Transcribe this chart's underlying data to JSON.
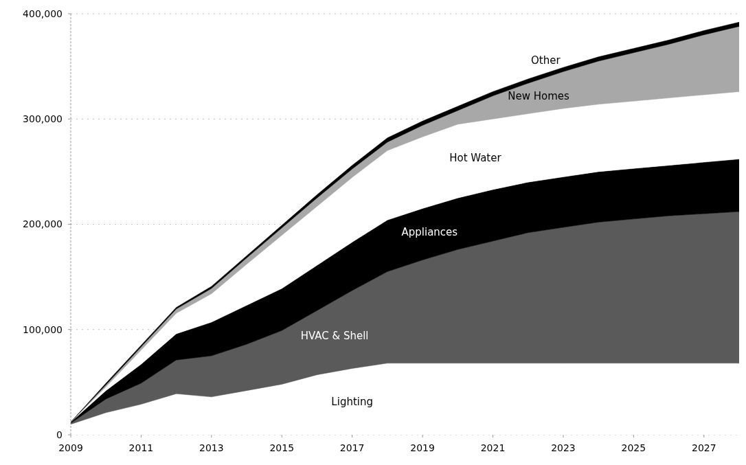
{
  "chart_data": {
    "type": "area",
    "stacked": true,
    "x": [
      2009,
      2010,
      2011,
      2012,
      2013,
      2014,
      2015,
      2016,
      2017,
      2018,
      2019,
      2020,
      2021,
      2022,
      2023,
      2024,
      2025,
      2026,
      2027,
      2028
    ],
    "xlim": [
      2009,
      2028
    ],
    "xticks": [
      2009,
      2011,
      2013,
      2015,
      2017,
      2019,
      2021,
      2023,
      2025,
      2027
    ],
    "ylim": [
      0,
      400000
    ],
    "yticks": [
      {
        "value": 0,
        "label": "0"
      },
      {
        "value": 100000,
        "label": "100,000"
      },
      {
        "value": 200000,
        "label": "200,000"
      },
      {
        "value": 300000,
        "label": "300,000"
      },
      {
        "value": 400000,
        "label": "400,000"
      }
    ],
    "grid": "y",
    "series": [
      {
        "name": "Lighting",
        "color": "#ffffff",
        "values": [
          10000,
          21000,
          29000,
          39000,
          36000,
          42000,
          48000,
          57000,
          63000,
          68000,
          68000,
          68000,
          68000,
          68000,
          68000,
          68000,
          68000,
          68000,
          68000,
          68000
        ]
      },
      {
        "name": "HVAC & Shell",
        "color": "#5a5a5a",
        "values": [
          1000,
          13000,
          20000,
          32000,
          39000,
          44000,
          51000,
          61000,
          74000,
          87000,
          98000,
          108000,
          116000,
          124000,
          129000,
          134000,
          137000,
          140000,
          142000,
          144000
        ]
      },
      {
        "name": "Appliances",
        "color": "#000000",
        "values": [
          1000,
          8000,
          18000,
          25000,
          32000,
          37000,
          40000,
          43000,
          46000,
          49000,
          49000,
          49000,
          49000,
          48000,
          48000,
          48000,
          48000,
          48000,
          49000,
          50000
        ]
      },
      {
        "name": "Hot Water",
        "color": "#ffffff",
        "values": [
          0,
          3500,
          13500,
          19500,
          27000,
          39000,
          50500,
          56000,
          61500,
          66000,
          68000,
          70000,
          67000,
          65000,
          65000,
          64000,
          64000,
          64000,
          64000,
          64000
        ]
      },
      {
        "name": "New Homes",
        "color": "#a8a8a8",
        "values": [
          0,
          2000,
          3000,
          4000,
          5000,
          6000,
          7000,
          8000,
          8000,
          8000,
          11000,
          13000,
          22000,
          29000,
          35000,
          41000,
          46000,
          51000,
          57000,
          62000
        ]
      },
      {
        "name": "Other",
        "color": "#000000",
        "values": [
          0,
          1500,
          1500,
          1500,
          2000,
          2000,
          2500,
          3000,
          3500,
          4000,
          4000,
          4000,
          4000,
          4000,
          4000,
          4000,
          4000,
          4000,
          4000,
          4000
        ]
      }
    ]
  }
}
